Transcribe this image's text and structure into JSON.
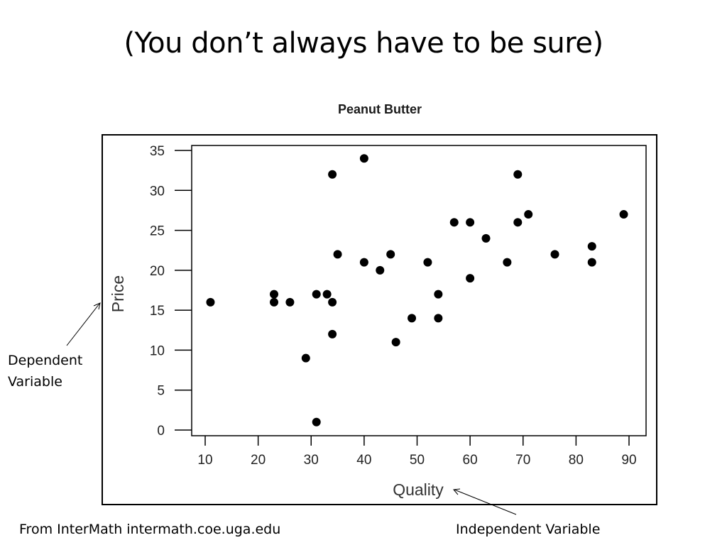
{
  "slide": {
    "title": "(You don’t always have to be sure)",
    "source_note": "From InterMath intermath.coe.uga.edu"
  },
  "annotations": {
    "dependent": "Dependent Variable",
    "independent": "Independent Variable"
  },
  "chart_data": {
    "type": "scatter",
    "title": "Peanut Butter",
    "xlabel": "Quality",
    "ylabel": "Price",
    "xlim": [
      10,
      90
    ],
    "ylim": [
      0,
      35
    ],
    "xticks": [
      10,
      20,
      30,
      40,
      50,
      60,
      70,
      80,
      90
    ],
    "yticks": [
      0,
      5,
      10,
      15,
      20,
      25,
      30,
      35
    ],
    "grid": false,
    "legend": "none",
    "marker_color": "#000000",
    "points": [
      {
        "x": 11,
        "y": 16
      },
      {
        "x": 23,
        "y": 17
      },
      {
        "x": 23,
        "y": 16
      },
      {
        "x": 26,
        "y": 16
      },
      {
        "x": 29,
        "y": 9
      },
      {
        "x": 31,
        "y": 17
      },
      {
        "x": 31,
        "y": 1
      },
      {
        "x": 33,
        "y": 17
      },
      {
        "x": 34,
        "y": 32
      },
      {
        "x": 34,
        "y": 16
      },
      {
        "x": 34,
        "y": 12
      },
      {
        "x": 35,
        "y": 22
      },
      {
        "x": 40,
        "y": 34
      },
      {
        "x": 40,
        "y": 21
      },
      {
        "x": 43,
        "y": 20
      },
      {
        "x": 45,
        "y": 22
      },
      {
        "x": 46,
        "y": 11
      },
      {
        "x": 49,
        "y": 14
      },
      {
        "x": 52,
        "y": 21
      },
      {
        "x": 54,
        "y": 17
      },
      {
        "x": 54,
        "y": 14
      },
      {
        "x": 57,
        "y": 26
      },
      {
        "x": 60,
        "y": 26
      },
      {
        "x": 60,
        "y": 19
      },
      {
        "x": 63,
        "y": 24
      },
      {
        "x": 67,
        "y": 21
      },
      {
        "x": 69,
        "y": 32
      },
      {
        "x": 69,
        "y": 26
      },
      {
        "x": 71,
        "y": 27
      },
      {
        "x": 76,
        "y": 22
      },
      {
        "x": 83,
        "y": 23
      },
      {
        "x": 83,
        "y": 21
      },
      {
        "x": 89,
        "y": 27
      }
    ]
  }
}
